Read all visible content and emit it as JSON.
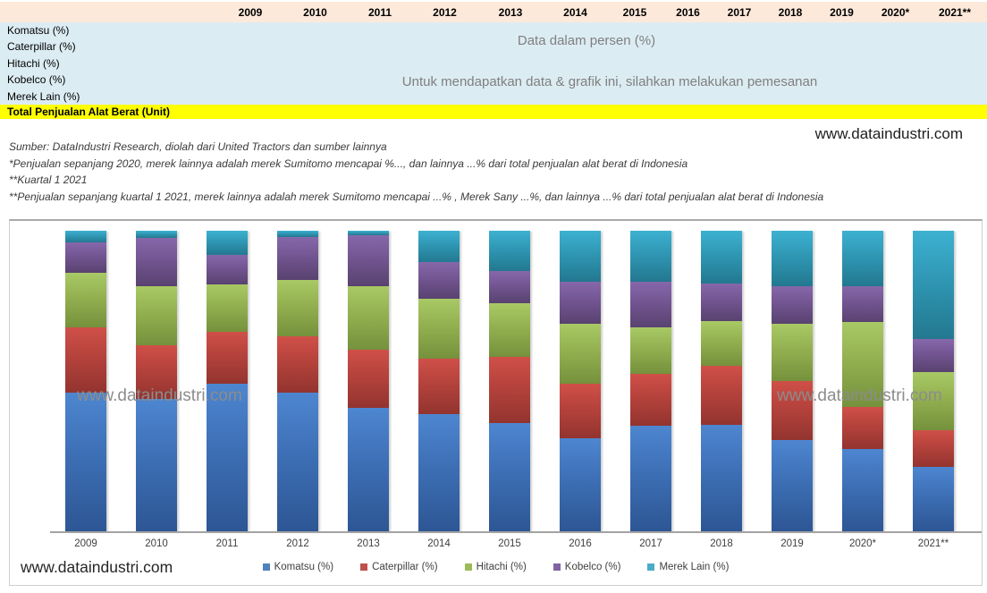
{
  "watermark": "www.dataindustri.com",
  "table": {
    "years": [
      "2009",
      "2010",
      "2011",
      "2012",
      "2013",
      "2014",
      "2015",
      "2016",
      "2017",
      "2018",
      "2019",
      "2020*",
      "2021**"
    ],
    "row_labels": [
      "Komatsu (%)",
      "Caterpillar (%)",
      "Hitachi (%)",
      "Kobelco (%)",
      "Merek Lain (%)"
    ],
    "total_row_label": "Total Penjualan Alat Berat (Unit)",
    "overlay_line1": "Data dalam persen (%)",
    "overlay_line2": "Untuk mendapatkan data & grafik ini, silahkan melakukan pemesanan",
    "colors": {
      "header_bg": "#fce9da",
      "body_bg": "#dcecf3",
      "total_bg": "#ffff00"
    }
  },
  "notes": {
    "lines": [
      "Sumber: DataIndustri Research, diolah dari United Tractors dan sumber lainnya",
      "*Penjualan sepanjang 2020, merek lainnya adalah merek Sumitomo mencapai %..., dan lainnya ...% dari total penjualan alat berat di Indonesia",
      "**Kuartal 1 2021",
      "**Penjualan sepanjang kuartal 1 2021, merek lainnya adalah merek Sumitomo mencapai ...% , Merek Sany ...%, dan lainnya ...% dari total penjualan alat berat di Indonesia"
    ]
  },
  "chart_data": {
    "type": "bar",
    "stacked": true,
    "stacked_total_percent": 100,
    "ylim": [
      0,
      100
    ],
    "grid": false,
    "legend_position": "bottom",
    "categories": [
      "2009",
      "2010",
      "2011",
      "2012",
      "2013",
      "2014",
      "2015",
      "2016",
      "2017",
      "2018",
      "2019",
      "2020*",
      "2021**"
    ],
    "series": [
      {
        "name": "Komatsu (%)",
        "color": "#4f81bd",
        "values": [
          46,
          44,
          49,
          46,
          41,
          39,
          36,
          31,
          35,
          35.5,
          30.5,
          27.5,
          21.5
        ]
      },
      {
        "name": "Caterpillar (%)",
        "color": "#c0504d",
        "values": [
          22,
          18,
          17.5,
          19,
          19.5,
          18.5,
          22,
          18,
          17.5,
          19.5,
          19.5,
          14,
          12
        ]
      },
      {
        "name": "Hitachi (%)",
        "color": "#9bbb59",
        "values": [
          18,
          19.5,
          15.5,
          18.5,
          21,
          20,
          18,
          20,
          15.5,
          15,
          19,
          28,
          19.5
        ]
      },
      {
        "name": "Kobelco (%)",
        "color": "#8064a2",
        "values": [
          10,
          16,
          10,
          14.5,
          17,
          12,
          10.5,
          14,
          15,
          12.5,
          12.5,
          12,
          11
        ]
      },
      {
        "name": "Merek Lain (%)",
        "color": "#4bacc6",
        "values": [
          4,
          2.5,
          8,
          2,
          1.5,
          10.5,
          13.5,
          17,
          17,
          17.5,
          18.5,
          18.5,
          36
        ]
      }
    ]
  }
}
